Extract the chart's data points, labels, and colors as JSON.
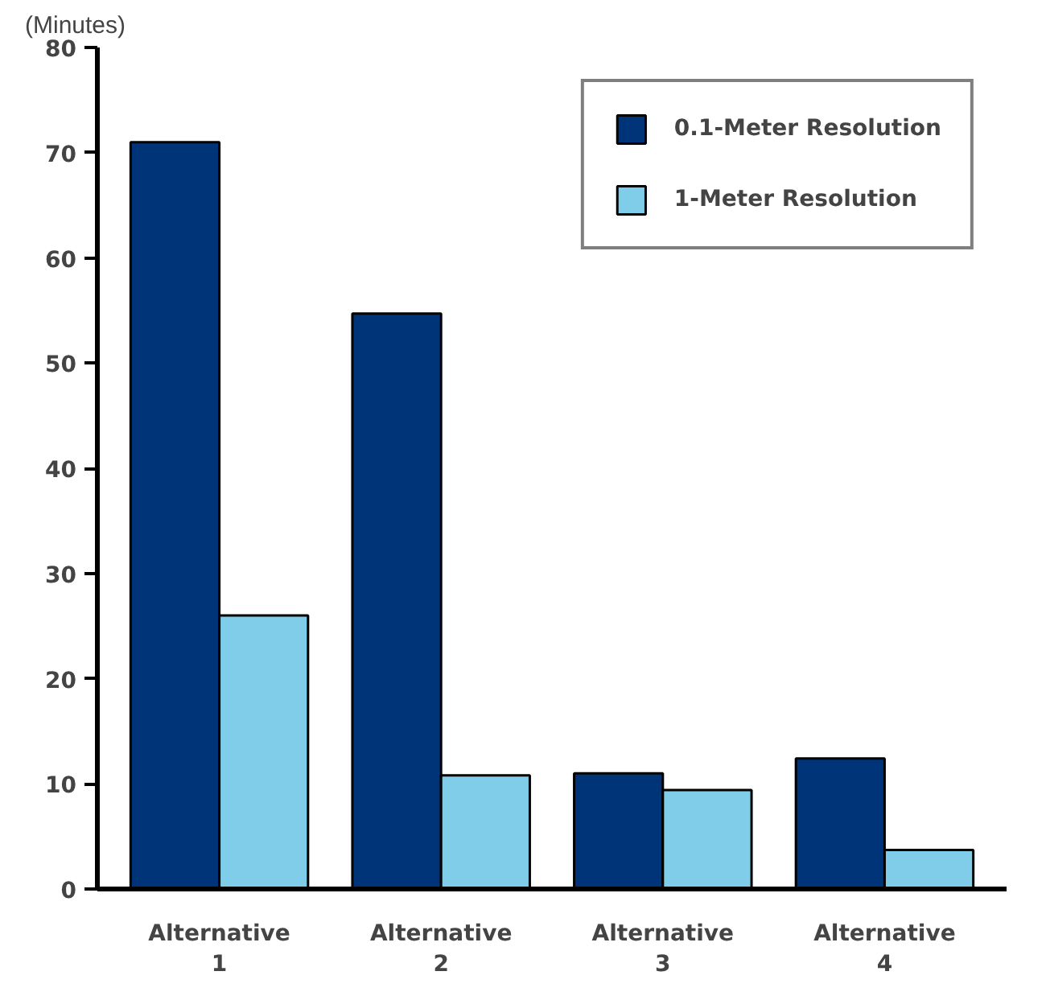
{
  "chart_data": {
    "type": "bar",
    "ylabel": "(Minutes)",
    "categories": [
      "Alternative\n1",
      "Alternative\n2",
      "Alternative\n3",
      "Alternative\n4"
    ],
    "series": [
      {
        "name": "0.1-Meter Resolution",
        "color": "#003478",
        "values": [
          71,
          54.7,
          11,
          12.4
        ]
      },
      {
        "name": "1-Meter Resolution",
        "color": "#7fcde8",
        "values": [
          26,
          10.8,
          9.4,
          3.7
        ]
      }
    ],
    "ylim": [
      0,
      80
    ],
    "yticks": [
      0,
      10,
      20,
      30,
      40,
      50,
      60,
      70,
      80
    ],
    "grid": false,
    "legend": "top right"
  }
}
